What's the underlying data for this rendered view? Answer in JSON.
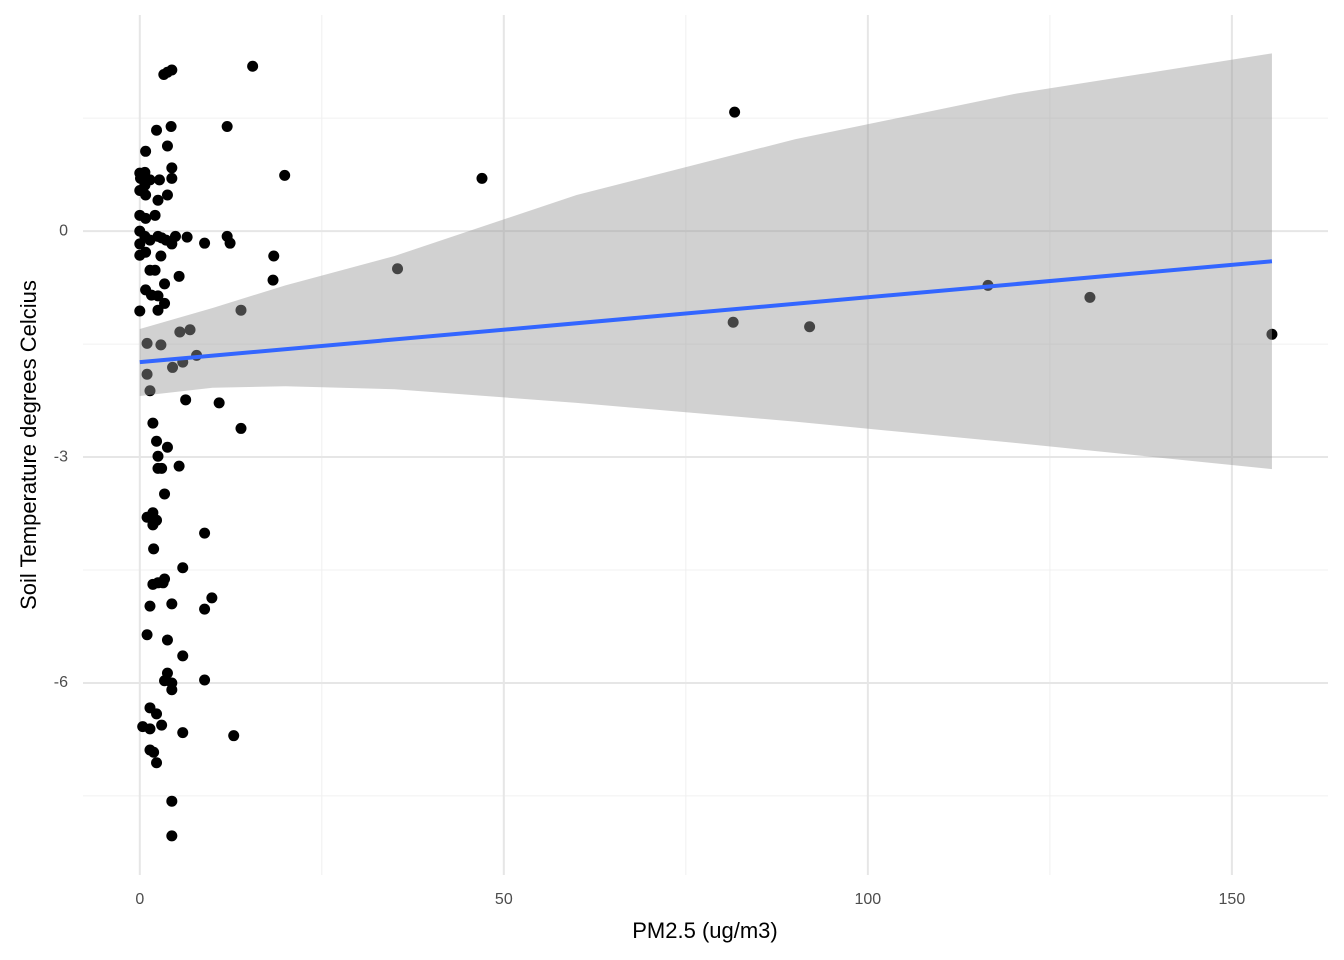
{
  "chart_data": {
    "type": "scatter",
    "x_label": "PM2.5 (ug/m3)",
    "y_label": "Soil Temperature degrees Celcius",
    "xlim": [
      -7.8,
      163.2
    ],
    "ylim": [
      -8.55,
      2.87
    ],
    "xticks": [
      0,
      50,
      100,
      150
    ],
    "yticks": [
      0,
      -3,
      -6
    ],
    "x_minor_ticks": [
      25,
      75,
      125
    ],
    "y_minor_ticks": [
      1.5,
      -1.5,
      -4.5,
      -7.5
    ],
    "grid": true,
    "point_color": "#000000",
    "x": [
      15.5,
      81.7,
      47.0,
      19.9,
      35.4,
      18.3,
      18.4,
      13.9,
      12.0,
      12.0,
      12.4,
      8.9,
      116.5,
      130.5,
      81.5,
      92.0,
      155.5,
      10.9,
      6.3,
      13.9,
      8.9,
      9.9,
      8.9,
      8.9,
      12.9,
      5.9,
      5.9,
      5.9,
      5.4,
      6.9,
      5.5,
      5.9,
      7.8,
      6.5,
      5.4,
      4.9,
      4.4,
      3.8,
      3.3,
      4.3,
      2.3,
      3.8,
      4.4,
      4.4,
      3.8,
      0.8,
      0,
      0.7,
      1.4,
      2.7,
      0,
      0.7,
      0.8,
      2.5,
      2.1,
      0,
      0.8,
      0,
      0.7,
      1.4,
      2.5,
      3.0,
      3.6,
      4.4,
      0,
      0,
      0.8,
      2.9,
      1.4,
      2.1,
      0,
      0.8,
      1.6,
      2.5,
      3.4,
      3.4,
      2.5,
      1.0,
      2.9,
      1.0,
      1.4,
      4.5,
      1.8,
      2.3,
      3.8,
      2.5,
      2.5,
      3.0,
      3.4,
      1.0,
      1.8,
      2.3,
      1.8,
      1.9,
      3.4,
      1.8,
      2.5,
      3.2,
      1.4,
      4.4,
      1.0,
      3.8,
      3.8,
      3.4,
      4.4,
      4.4,
      1.4,
      2.3,
      3.0,
      0.4,
      1.4,
      1.4,
      1.9,
      2.3,
      4.4,
      4.4,
      0.1
    ],
    "y": [
      2.19,
      1.58,
      0.7,
      0.74,
      -0.5,
      -0.65,
      -0.33,
      -1.05,
      1.39,
      -0.07,
      -0.16,
      -0.16,
      -0.72,
      -0.88,
      -1.21,
      -1.27,
      -1.37,
      -2.28,
      -2.24,
      -2.62,
      -4.01,
      -4.87,
      -5.02,
      -5.96,
      -6.7,
      -4.47,
      -5.64,
      -6.66,
      -3.12,
      -1.31,
      -1.34,
      -1.74,
      -1.65,
      -0.08,
      -0.6,
      -0.07,
      2.14,
      2.11,
      2.08,
      1.39,
      1.34,
      1.13,
      0.84,
      0.7,
      0.48,
      1.06,
      0.77,
      0.78,
      0.68,
      0.68,
      0.54,
      0.61,
      0.48,
      0.41,
      0.21,
      0.21,
      0.17,
      0,
      -0.07,
      -0.12,
      -0.07,
      -0.09,
      -0.12,
      -0.17,
      -0.17,
      -0.32,
      -0.28,
      -0.33,
      -0.52,
      -0.52,
      -1.06,
      -0.78,
      -0.85,
      -1.05,
      -0.96,
      -0.7,
      -0.86,
      -1.49,
      -1.51,
      -1.9,
      -2.12,
      -1.81,
      -2.55,
      -2.79,
      -2.87,
      -2.99,
      -3.15,
      -3.15,
      -3.49,
      -3.8,
      -3.74,
      -3.84,
      -3.9,
      -4.22,
      -4.62,
      -4.69,
      -4.67,
      -4.67,
      -4.98,
      -4.95,
      -5.36,
      -5.43,
      -5.87,
      -5.97,
      -6.0,
      -6.09,
      -6.33,
      -6.41,
      -6.56,
      -6.58,
      -6.61,
      -6.89,
      -6.92,
      -7.06,
      -7.57,
      -8.03,
      0.7
    ],
    "fit": {
      "color": "#3366ff",
      "x": [
        0,
        155.5
      ],
      "y": [
        -1.74,
        -0.4
      ]
    },
    "band": {
      "color": "#999999",
      "x": [
        0,
        10,
        20,
        35,
        60,
        90,
        120,
        155.5
      ],
      "upper": [
        -1.3,
        -1.02,
        -0.72,
        -0.33,
        0.48,
        1.22,
        1.82,
        2.36
      ],
      "lower": [
        -2.19,
        -2.08,
        -2.06,
        -2.1,
        -2.28,
        -2.53,
        -2.81,
        -3.16
      ]
    }
  }
}
